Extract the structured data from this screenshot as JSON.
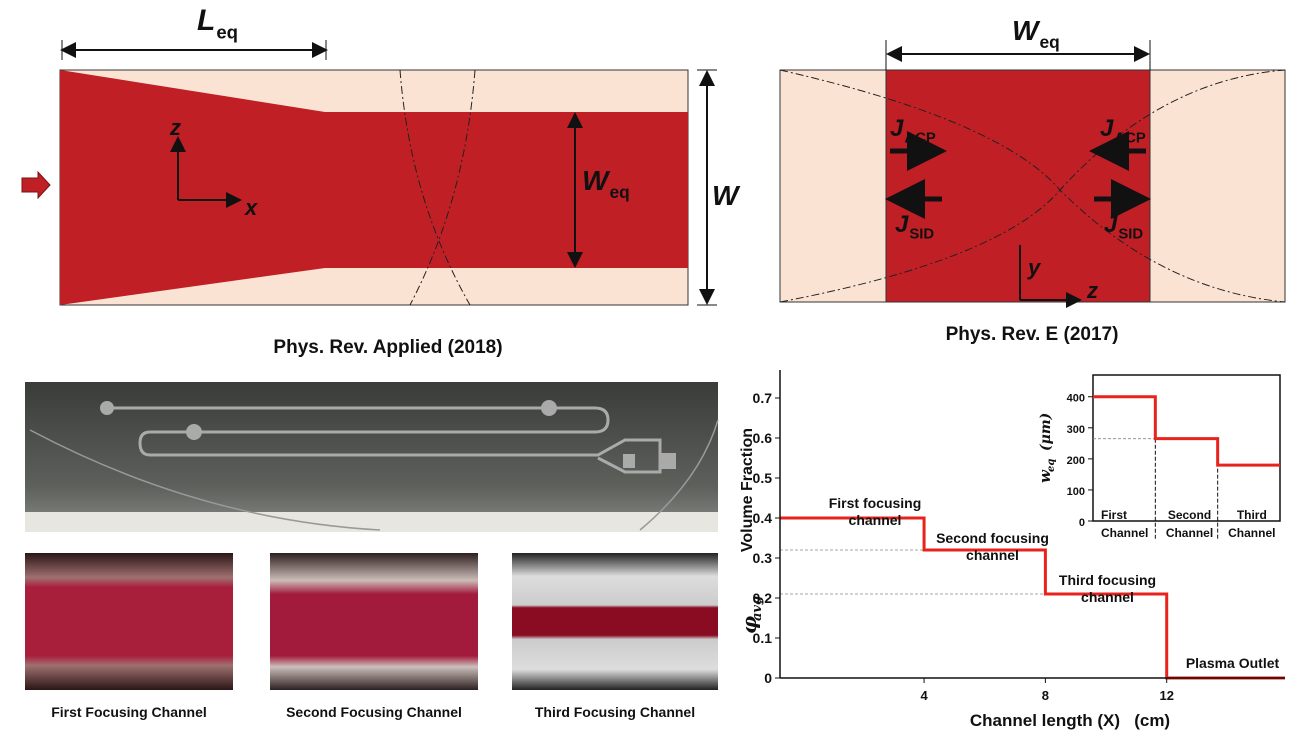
{
  "top_left": {
    "L_eq": {
      "main": "L",
      "sub": "eq"
    },
    "axis_z": "z",
    "axis_x": "x",
    "W_eq": {
      "main": "W",
      "sub": "eq"
    },
    "W": "W",
    "citation": "Phys. Rev. Applied (2018)"
  },
  "top_right": {
    "W_eq": {
      "main": "W",
      "sub": "eq"
    },
    "J_ACP_left": {
      "main": "J",
      "sub": "ACP"
    },
    "J_ACP_right": {
      "main": "J",
      "sub": "ACP"
    },
    "J_SID_left": {
      "main": "J",
      "sub": "SID"
    },
    "J_SID_right": {
      "main": "J",
      "sub": "SID"
    },
    "axis_y": "y",
    "axis_z": "z",
    "citation": "Phys. Rev. E (2017)"
  },
  "photos": {
    "captions": [
      "First Focusing Channel",
      "Second Focusing Channel",
      "Third Focusing Channel"
    ]
  },
  "chart_data": [
    {
      "type": "line",
      "x": [
        -0.75,
        4,
        4,
        8,
        8,
        12,
        12,
        15.9
      ],
      "values": [
        0.4,
        0.4,
        0.32,
        0.32,
        0.21,
        0.21,
        0,
        0
      ],
      "color": "#e8221c",
      "xlim": [
        -0.75,
        15.9
      ],
      "xticks": [
        4,
        8,
        12
      ],
      "ylim": [
        0,
        0.77
      ],
      "yticks": [
        0,
        0.1,
        0.2,
        0.3,
        0.4,
        0.5,
        0.6,
        0.7
      ],
      "x_label": "Channel length (X)   (cm)",
      "y_label": "Volume Fraction",
      "y_label_symbol": {
        "main": "φ",
        "sub": "avg"
      },
      "annotations": [
        "First focusing channel",
        "Second focusing channel",
        "Third focusing channel",
        "Plasma Outlet"
      ]
    },
    {
      "type": "line",
      "x": [
        0,
        1,
        1,
        2,
        2,
        3
      ],
      "values": [
        400,
        400,
        265,
        265,
        180,
        180
      ],
      "color": "#e8221c",
      "xlim": [
        0,
        3
      ],
      "categories": [
        "First Channel",
        "Second Channel",
        "Third Channel"
      ],
      "ylim": [
        0,
        470
      ],
      "yticks": [
        0,
        100,
        200,
        300,
        400
      ],
      "y_label": {
        "main": "w",
        "sub": "eq",
        "unit": "(μm)"
      }
    }
  ]
}
